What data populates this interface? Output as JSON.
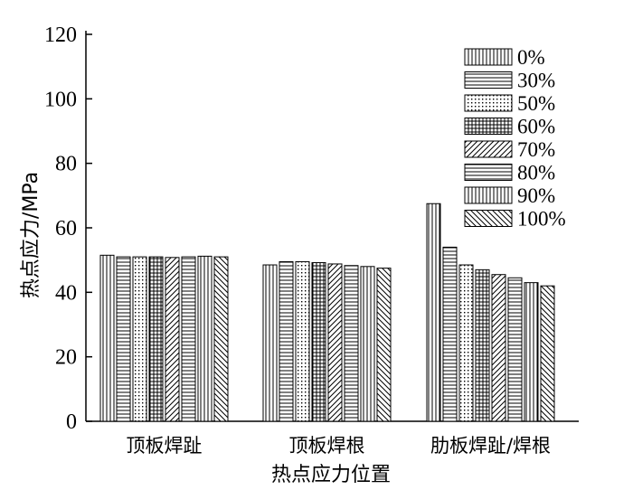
{
  "chart_data": {
    "type": "bar",
    "title": "",
    "xlabel": "热点应力位置",
    "ylabel": "热点应力/MPa",
    "ylim": [
      0,
      120
    ],
    "yticks": [
      0,
      20,
      40,
      60,
      80,
      100,
      120
    ],
    "categories": [
      "顶板焊趾",
      "顶板焊根",
      "肋板焊趾/焊根"
    ],
    "legend_position": "top-right",
    "series": [
      {
        "name": "0%",
        "pattern": "vlines",
        "values": [
          51.5,
          48.5,
          67.5
        ]
      },
      {
        "name": "30%",
        "pattern": "hlines",
        "values": [
          51.0,
          49.5,
          54.0
        ]
      },
      {
        "name": "50%",
        "pattern": "dots",
        "values": [
          51.0,
          49.5,
          48.5
        ]
      },
      {
        "name": "60%",
        "pattern": "grid",
        "values": [
          51.0,
          49.2,
          47.0
        ]
      },
      {
        "name": "70%",
        "pattern": "diag",
        "values": [
          50.8,
          48.8,
          45.5
        ]
      },
      {
        "name": "80%",
        "pattern": "hlines",
        "values": [
          51.0,
          48.3,
          44.5
        ]
      },
      {
        "name": "90%",
        "pattern": "vlines",
        "values": [
          51.2,
          48.0,
          43.0
        ]
      },
      {
        "name": "100%",
        "pattern": "bdiag",
        "values": [
          51.0,
          47.5,
          42.0
        ]
      }
    ]
  }
}
